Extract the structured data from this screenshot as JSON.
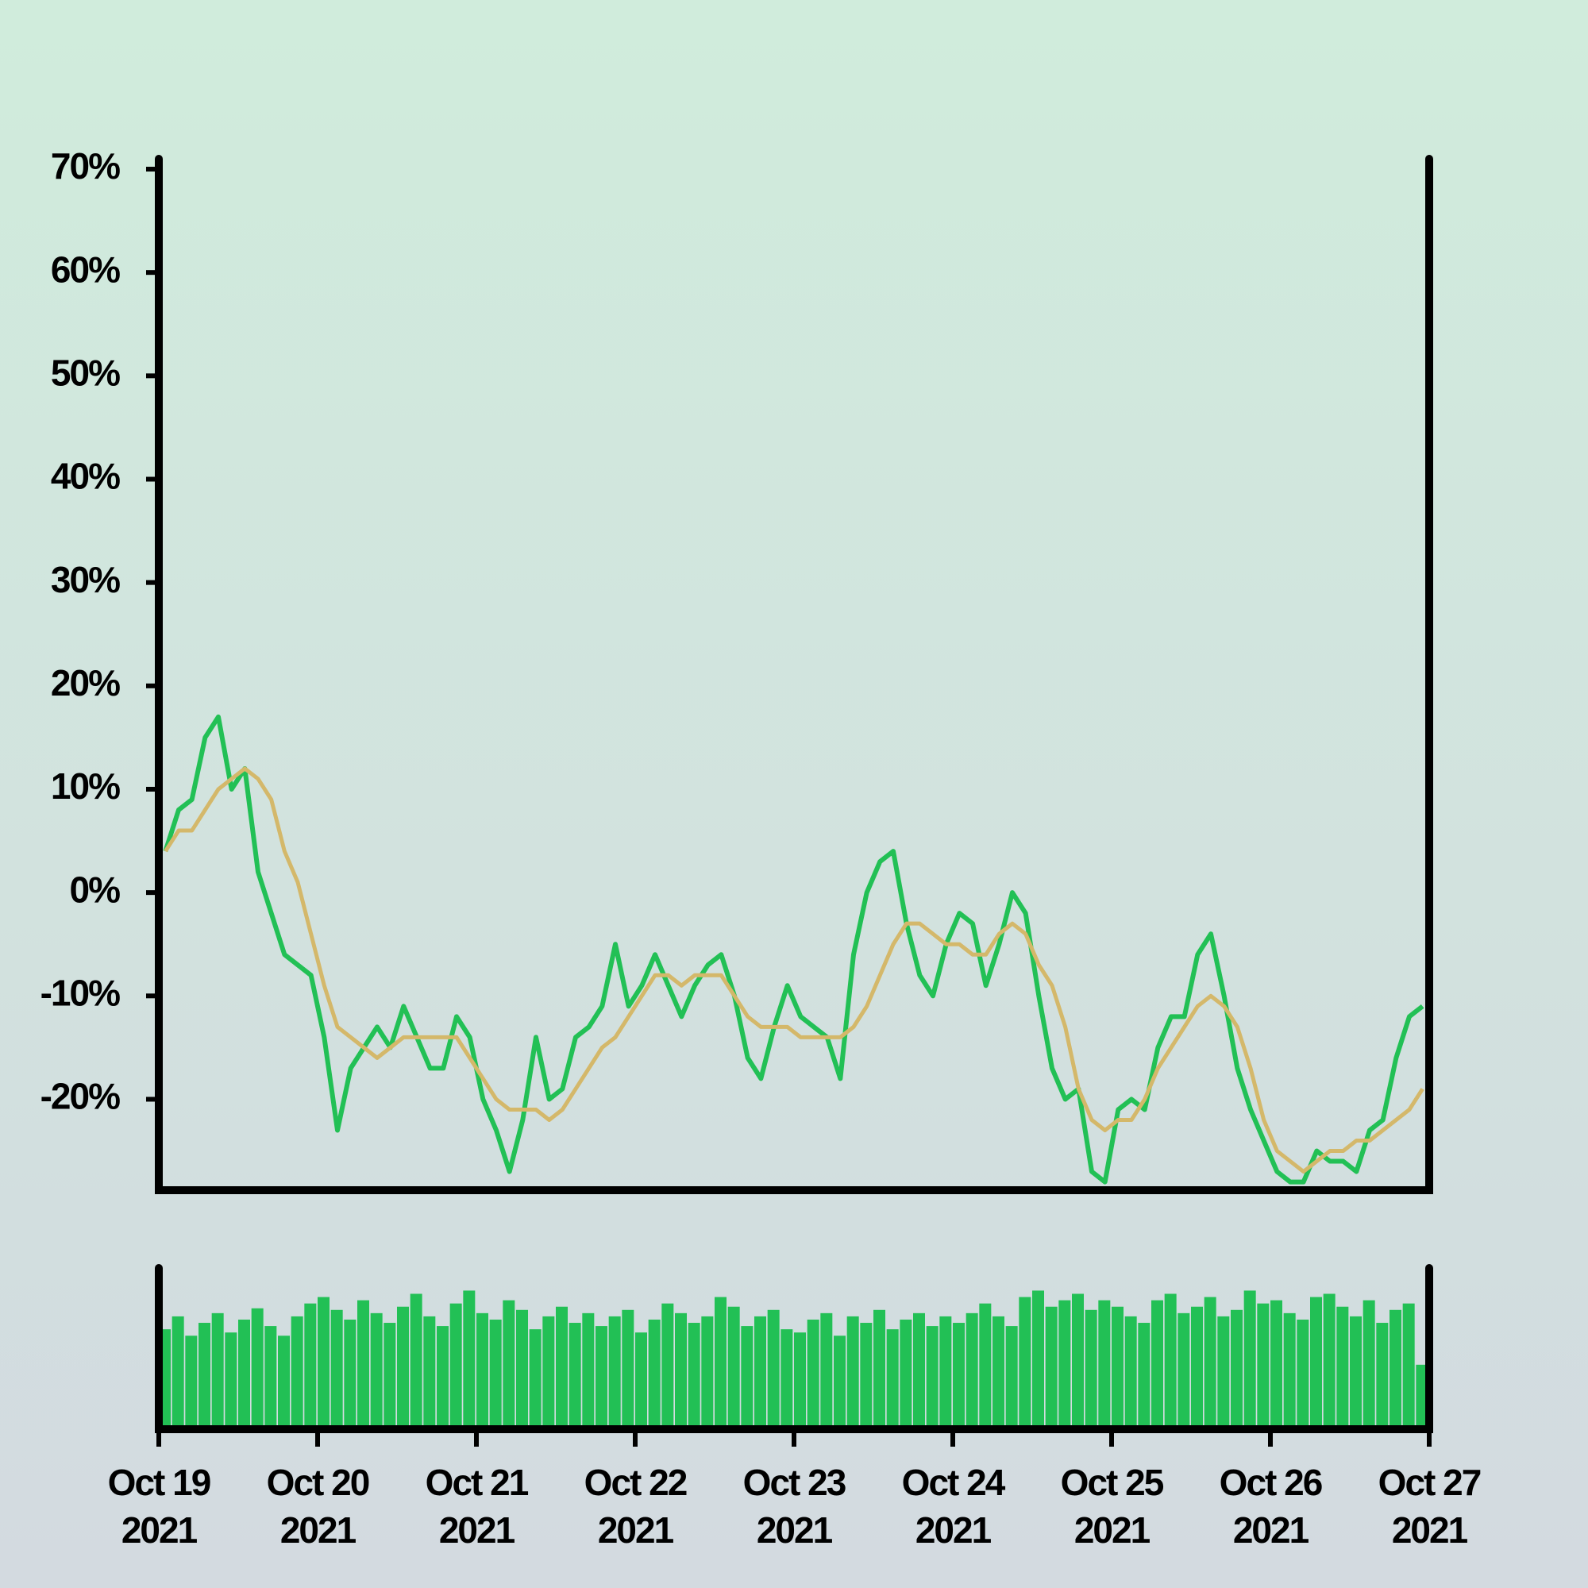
{
  "chart_data": {
    "type": "line",
    "x": [
      1,
      3,
      5,
      7,
      9,
      11,
      13,
      15,
      17,
      19,
      21,
      23,
      25,
      27,
      29,
      31,
      33,
      35,
      37,
      39,
      41,
      43,
      45,
      47,
      49,
      51,
      53,
      55,
      57,
      59,
      61,
      63,
      65,
      67,
      69,
      71,
      73,
      75,
      77,
      79,
      81,
      83,
      85,
      87,
      89,
      91,
      93,
      95,
      97,
      99,
      101,
      103,
      105,
      107,
      109,
      111,
      113,
      115,
      117,
      119,
      121,
      123,
      125,
      127,
      129,
      131,
      133,
      135,
      137,
      139,
      141,
      143,
      145,
      147,
      149,
      151,
      153,
      155,
      157,
      159,
      161,
      163,
      165,
      167,
      169,
      171,
      173,
      175,
      177,
      179,
      181,
      183,
      185,
      187,
      189,
      191
    ],
    "series": [
      {
        "color": "#22c055",
        "values": [
          4,
          8,
          9,
          15,
          17,
          10,
          12,
          2,
          -2,
          -6,
          -7,
          -8,
          -14,
          -23,
          -17,
          -15,
          -13,
          -15,
          -11,
          -14,
          -17,
          -17,
          -12,
          -14,
          -20,
          -23,
          -27,
          -22,
          -14,
          -20,
          -19,
          -14,
          -13,
          -11,
          -5,
          -11,
          -9,
          -6,
          -9,
          -12,
          -9,
          -7,
          -6,
          -10,
          -16,
          -18,
          -13,
          -9,
          -12,
          -13,
          -14,
          -18,
          -6,
          0,
          3,
          4,
          -3,
          -8,
          -10,
          -5,
          -2,
          -3,
          -9,
          -5,
          0,
          -2,
          -10,
          -17,
          -20,
          -19,
          -27,
          -28,
          -21,
          -20,
          -21,
          -15,
          -12,
          -12,
          -6,
          -4,
          -10,
          -17,
          -21,
          -24,
          -27,
          -28,
          -28,
          -25,
          -26,
          -26,
          -27,
          -23,
          -22,
          -16,
          -12,
          -11
        ]
      },
      {
        "color": "#d4b86a",
        "values": [
          4,
          6,
          6,
          8,
          10,
          11,
          12,
          11,
          9,
          4,
          1,
          -4,
          -9,
          -13,
          -14,
          -15,
          -16,
          -15,
          -14,
          -14,
          -14,
          -14,
          -14,
          -16,
          -18,
          -20,
          -21,
          -21,
          -21,
          -22,
          -21,
          -19,
          -17,
          -15,
          -14,
          -12,
          -10,
          -8,
          -8,
          -9,
          -8,
          -8,
          -8,
          -10,
          -12,
          -13,
          -13,
          -13,
          -14,
          -14,
          -14,
          -14,
          -13,
          -11,
          -8,
          -5,
          -3,
          -3,
          -4,
          -5,
          -5,
          -6,
          -6,
          -4,
          -3,
          -4,
          -7,
          -9,
          -13,
          -19,
          -22,
          -23,
          -22,
          -22,
          -20,
          -17,
          -15,
          -13,
          -11,
          -10,
          -11,
          -13,
          -17,
          -22,
          -25,
          -26,
          -27,
          -26,
          -25,
          -25,
          -24,
          -24,
          -23,
          -22,
          -21,
          -19
        ]
      }
    ],
    "xlim": [
      0,
      192
    ],
    "xticks": [
      {
        "value": 0,
        "label": "Oct 19\n2021"
      },
      {
        "value": 24,
        "label": "Oct 20\n2021"
      },
      {
        "value": 48,
        "label": "Oct 21\n2021"
      },
      {
        "value": 72,
        "label": "Oct 22\n2021"
      },
      {
        "value": 96,
        "label": "Oct 23\n2021"
      },
      {
        "value": 120,
        "label": "Oct 24\n2021"
      },
      {
        "value": 144,
        "label": "Oct 25\n2021"
      },
      {
        "value": 168,
        "label": "Oct 26\n2021"
      },
      {
        "value": 192,
        "label": "Oct 27\n2021"
      }
    ],
    "ylim": [
      -28.8,
      71
    ],
    "yticks": [
      {
        "value": -20,
        "label": "-20%"
      },
      {
        "value": -10,
        "label": "-10%"
      },
      {
        "value": 0,
        "label": "0%"
      },
      {
        "value": 10,
        "label": "10%"
      },
      {
        "value": 20,
        "label": "20%"
      },
      {
        "value": 30,
        "label": "30%"
      },
      {
        "value": 40,
        "label": "40%"
      },
      {
        "value": 50,
        "label": "50%"
      },
      {
        "value": 60,
        "label": "60%"
      },
      {
        "value": 70,
        "label": "70%"
      }
    ],
    "volume": {
      "color": "#22c055",
      "ylim": [
        0,
        100
      ],
      "values": [
        62,
        70,
        58,
        66,
        72,
        60,
        68,
        75,
        64,
        58,
        70,
        78,
        82,
        74,
        68,
        80,
        72,
        66,
        76,
        84,
        70,
        64,
        78,
        86,
        72,
        68,
        80,
        74,
        62,
        70,
        76,
        66,
        72,
        64,
        70,
        74,
        60,
        68,
        78,
        72,
        66,
        70,
        82,
        76,
        64,
        70,
        74,
        62,
        60,
        68,
        72,
        58,
        70,
        66,
        74,
        62,
        68,
        72,
        64,
        70,
        66,
        72,
        78,
        70,
        64,
        82,
        86,
        76,
        80,
        84,
        74,
        80,
        76,
        70,
        66,
        80,
        84,
        72,
        76,
        82,
        70,
        74,
        86,
        78,
        80,
        72,
        68,
        82,
        84,
        76,
        70,
        80,
        66,
        74,
        78,
        40
      ]
    }
  }
}
